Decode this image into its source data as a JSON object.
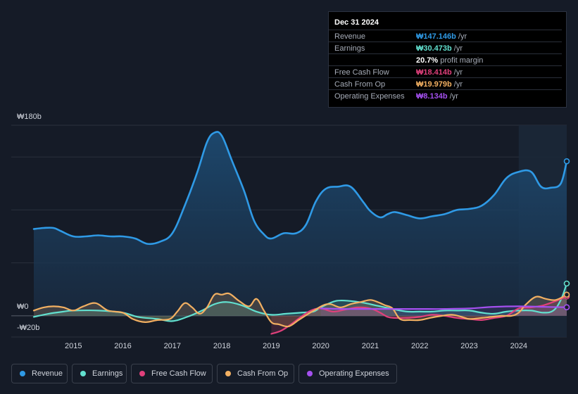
{
  "tooltip": {
    "date": "Dec 31 2024",
    "rows": [
      {
        "label": "Revenue",
        "value": "₩147.146b",
        "unit": " /yr",
        "color": "#2f9ae6"
      },
      {
        "label": "Earnings",
        "value": "₩30.473b",
        "unit": " /yr",
        "color": "#62e0cf"
      },
      {
        "label": "",
        "value": "20.7%",
        "unit": " profit margin",
        "color": "#ffffff"
      },
      {
        "label": "Free Cash Flow",
        "value": "₩18.414b",
        "unit": " /yr",
        "color": "#e0407b"
      },
      {
        "label": "Cash From Op",
        "value": "₩19.979b",
        "unit": " /yr",
        "color": "#f2b062"
      },
      {
        "label": "Operating Expenses",
        "value": "₩8.134b",
        "unit": " /yr",
        "color": "#a450ef"
      }
    ]
  },
  "legend": [
    {
      "label": "Revenue",
      "color": "#2f9ae6"
    },
    {
      "label": "Earnings",
      "color": "#62e0cf"
    },
    {
      "label": "Free Cash Flow",
      "color": "#e0407b"
    },
    {
      "label": "Cash From Op",
      "color": "#f2b062"
    },
    {
      "label": "Operating Expenses",
      "color": "#a450ef"
    }
  ],
  "chart_data": {
    "type": "area",
    "title": "",
    "xlabel": "",
    "ylabel": "",
    "y_tick_labels": [
      "₩180b",
      "₩0",
      "-₩20b"
    ],
    "ylim": [
      -20,
      180
    ],
    "xlim": [
      2014.2,
      2024.97
    ],
    "x_ticks": [
      "2015",
      "2016",
      "2017",
      "2018",
      "2019",
      "2020",
      "2021",
      "2022",
      "2023",
      "2024"
    ],
    "x_tick_values": [
      2015,
      2016,
      2017,
      2018,
      2019,
      2020,
      2021,
      2022,
      2023,
      2024
    ],
    "highlight_from": 2024.0,
    "series": [
      {
        "name": "Revenue",
        "color": "#2f9ae6",
        "x": [
          2014.2,
          2014.4,
          2014.6,
          2014.75,
          2015.0,
          2015.25,
          2015.5,
          2015.75,
          2016.0,
          2016.25,
          2016.5,
          2016.75,
          2017.0,
          2017.25,
          2017.5,
          2017.7,
          2017.85,
          2018.0,
          2018.2,
          2018.45,
          2018.65,
          2018.85,
          2019.0,
          2019.25,
          2019.5,
          2019.7,
          2019.9,
          2020.1,
          2020.35,
          2020.6,
          2020.85,
          2021.0,
          2021.2,
          2021.35,
          2021.5,
          2021.75,
          2022.0,
          2022.25,
          2022.5,
          2022.75,
          2023.0,
          2023.25,
          2023.5,
          2023.75,
          2024.0,
          2024.25,
          2024.45,
          2024.65,
          2024.85,
          2024.97
        ],
        "values": [
          82,
          83,
          83,
          80,
          75,
          75,
          76,
          75,
          75,
          73,
          68,
          70,
          78,
          104,
          135,
          164,
          173,
          170,
          147,
          118,
          90,
          77,
          73,
          78,
          78,
          86,
          108,
          120,
          122,
          122,
          108,
          99,
          93,
          96,
          98,
          95,
          92,
          94,
          96,
          100,
          101,
          104,
          114,
          130,
          136,
          136,
          122,
          121,
          125,
          146
        ]
      },
      {
        "name": "Earnings",
        "color": "#62e0cf",
        "x": [
          2014.2,
          2014.5,
          2014.8,
          2015.0,
          2015.5,
          2016.0,
          2016.3,
          2016.7,
          2017.0,
          2017.3,
          2017.6,
          2017.85,
          2018.1,
          2018.4,
          2018.7,
          2019.0,
          2019.3,
          2019.6,
          2019.85,
          2020.0,
          2020.3,
          2020.6,
          2020.9,
          2021.1,
          2021.3,
          2021.5,
          2021.75,
          2022.0,
          2022.25,
          2022.5,
          2022.75,
          2023.0,
          2023.25,
          2023.5,
          2023.75,
          2024.0,
          2024.25,
          2024.5,
          2024.7,
          2024.85,
          2024.97
        ],
        "values": [
          -1,
          2,
          4,
          5,
          5,
          3,
          -1,
          -3,
          -5,
          -1,
          5,
          11,
          13,
          10,
          4,
          1,
          2,
          3,
          4,
          8,
          14,
          14,
          12,
          10,
          8,
          6,
          4,
          4,
          4,
          5,
          5,
          5,
          3,
          2,
          4,
          5,
          5,
          3,
          5,
          15,
          30.5
        ]
      },
      {
        "name": "Free Cash Flow",
        "color": "#e0407b",
        "x": [
          2019.0,
          2019.2,
          2019.4,
          2019.6,
          2019.8,
          2020.0,
          2020.25,
          2020.5,
          2020.75,
          2021.0,
          2021.2,
          2021.35,
          2021.5,
          2021.75,
          2022.0,
          2022.25,
          2022.5,
          2022.75,
          2023.0,
          2023.25,
          2023.5,
          2023.75,
          2024.0,
          2024.25,
          2024.5,
          2024.75,
          2024.97
        ],
        "values": [
          -17,
          -14,
          -8,
          -1,
          5,
          7,
          4,
          6,
          8,
          7,
          3,
          -1,
          -2,
          -2,
          -1,
          1,
          0,
          -2,
          -3,
          -4,
          -2,
          0,
          7,
          8,
          10,
          14,
          18.4
        ]
      },
      {
        "name": "Cash From Op",
        "color": "#f2b062",
        "x": [
          2014.2,
          2014.4,
          2014.6,
          2014.8,
          2015.0,
          2015.2,
          2015.45,
          2015.7,
          2016.0,
          2016.2,
          2016.45,
          2016.7,
          2016.95,
          2017.1,
          2017.25,
          2017.4,
          2017.55,
          2017.7,
          2017.85,
          2018.0,
          2018.15,
          2018.35,
          2018.55,
          2018.7,
          2018.85,
          2019.0,
          2019.15,
          2019.35,
          2019.55,
          2019.75,
          2019.9,
          2020.05,
          2020.2,
          2020.4,
          2020.6,
          2020.8,
          2021.0,
          2021.15,
          2021.3,
          2021.45,
          2021.6,
          2021.8,
          2022.0,
          2022.2,
          2022.45,
          2022.65,
          2022.85,
          2023.0,
          2023.25,
          2023.45,
          2023.65,
          2023.85,
          2024.0,
          2024.15,
          2024.35,
          2024.55,
          2024.75,
          2024.97
        ],
        "values": [
          5,
          8,
          9,
          8,
          5,
          9,
          12,
          5,
          3,
          -3,
          -6,
          -4,
          -3,
          4,
          12,
          8,
          2,
          8,
          20,
          20,
          21,
          14,
          9,
          16,
          5,
          -6,
          -8,
          -10,
          -4,
          2,
          6,
          10,
          11,
          8,
          11,
          13,
          15,
          13,
          10,
          7,
          -3,
          -4,
          -4,
          -2,
          0,
          1,
          -1,
          -3,
          -2,
          -1,
          0,
          0,
          3,
          11,
          18,
          16,
          15,
          20
        ]
      },
      {
        "name": "Operating Expenses",
        "color": "#a450ef",
        "x": [
          2020.0,
          2020.5,
          2021.0,
          2021.5,
          2022.0,
          2022.5,
          2023.0,
          2023.5,
          2024.0,
          2024.5,
          2024.97
        ],
        "values": [
          7,
          6.5,
          6.5,
          6.5,
          6.5,
          6.5,
          7,
          8.5,
          9,
          8.5,
          8.1
        ]
      }
    ]
  }
}
